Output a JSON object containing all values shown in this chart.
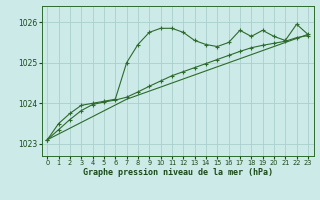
{
  "title": "Graphe pression niveau de la mer (hPa)",
  "background_color": "#cceae7",
  "grid_color": "#aacfcc",
  "line_color": "#2d6b2d",
  "xlim": [
    -0.5,
    23.5
  ],
  "ylim": [
    1022.7,
    1026.4
  ],
  "yticks": [
    1023,
    1024,
    1025,
    1026
  ],
  "xticks": [
    0,
    1,
    2,
    3,
    4,
    5,
    6,
    7,
    8,
    9,
    10,
    11,
    12,
    13,
    14,
    15,
    16,
    17,
    18,
    19,
    20,
    21,
    22,
    23
  ],
  "series1_x": [
    0,
    1,
    2,
    3,
    4,
    5,
    6,
    7,
    8,
    9,
    10,
    11,
    12,
    13,
    14,
    15,
    16,
    17,
    18,
    19,
    20,
    21,
    22,
    23
  ],
  "series1_y": [
    1023.1,
    1023.5,
    1023.75,
    1023.95,
    1024.0,
    1024.05,
    1024.1,
    1025.0,
    1025.45,
    1025.75,
    1025.85,
    1025.85,
    1025.75,
    1025.55,
    1025.45,
    1025.4,
    1025.5,
    1025.8,
    1025.65,
    1025.8,
    1025.65,
    1025.55,
    1025.95,
    1025.7
  ],
  "series2_x": [
    0,
    1,
    2,
    3,
    4,
    5,
    6,
    7,
    8,
    9,
    10,
    11,
    12,
    13,
    14,
    15,
    16,
    17,
    18,
    19,
    20,
    21,
    22,
    23
  ],
  "series2_y": [
    1023.1,
    1023.35,
    1023.6,
    1023.82,
    1023.97,
    1024.03,
    1024.08,
    1024.15,
    1024.28,
    1024.42,
    1024.55,
    1024.68,
    1024.78,
    1024.88,
    1024.98,
    1025.08,
    1025.18,
    1025.28,
    1025.37,
    1025.43,
    1025.48,
    1025.53,
    1025.62,
    1025.67
  ],
  "series3_x": [
    0,
    7,
    23
  ],
  "series3_y": [
    1023.1,
    1024.1,
    1025.7
  ]
}
